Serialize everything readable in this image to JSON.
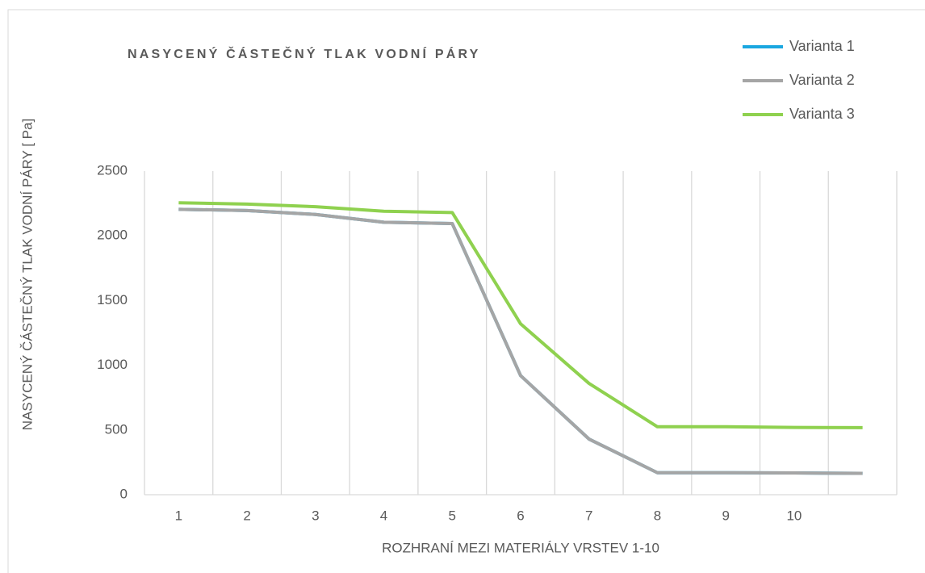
{
  "chart_data": {
    "type": "line",
    "title": "NASYCENÝ ČÁSTEČNÝ TLAK VODNÍ PÁRY",
    "xlabel": "ROZHRANÍ MEZI MATERIÁLY VRSTEV 1-10",
    "ylabel": "NASYCENÝ ČÁSTEČNÝ TLAK VODNÍ PÁRY [ Pa]",
    "categories": [
      "1",
      "2",
      "3",
      "4",
      "5",
      "6",
      "7",
      "8",
      "9",
      "10",
      null
    ],
    "series": [
      {
        "name": "Varianta 1",
        "color": "#1aa7e0",
        "values": [
          2205,
          2195,
          2165,
          2105,
          2095,
          920,
          430,
          170,
          170,
          168,
          165
        ]
      },
      {
        "name": "Varianta 2",
        "color": "#a5a5a5",
        "values": [
          2205,
          2195,
          2165,
          2105,
          2095,
          920,
          430,
          170,
          170,
          168,
          165
        ]
      },
      {
        "name": "Varianta 3",
        "color": "#8fd14f",
        "values": [
          2255,
          2245,
          2225,
          2190,
          2180,
          1320,
          860,
          525,
          525,
          520,
          518
        ]
      }
    ],
    "ylim": [
      0,
      2500
    ],
    "yticks": [
      0,
      500,
      1000,
      1500,
      2000,
      2500
    ],
    "category_grid": true,
    "legend_position": "top-right"
  }
}
